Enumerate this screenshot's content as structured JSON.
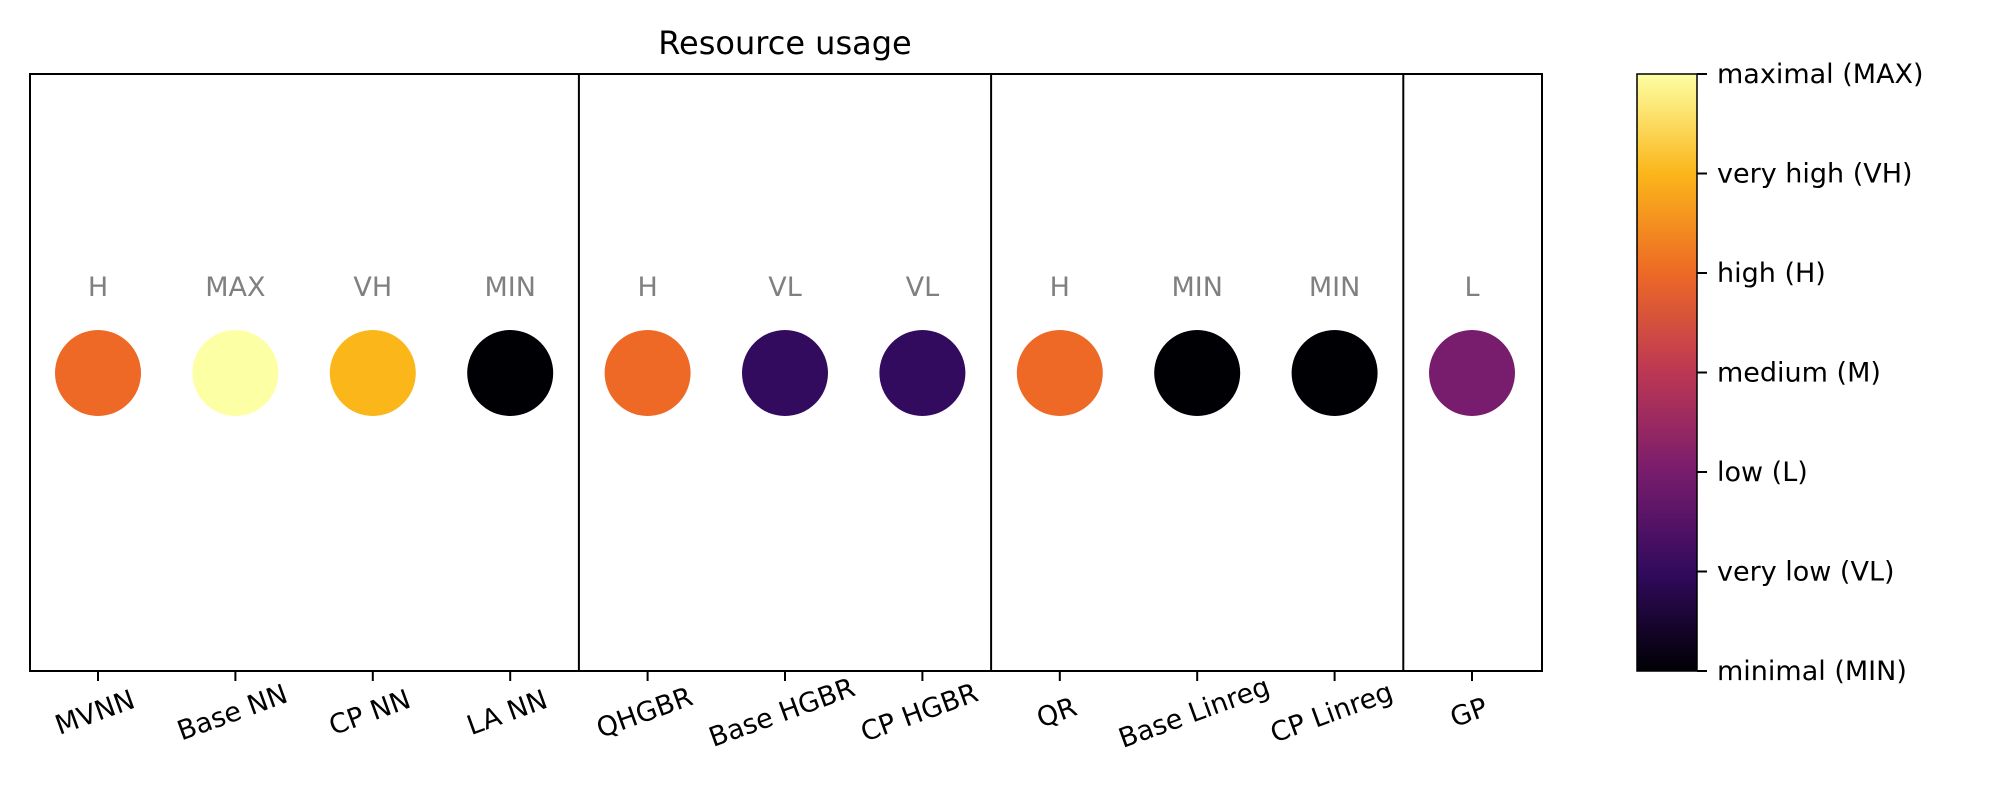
{
  "chart_data": {
    "type": "scatter",
    "title": "Resource usage",
    "xlabel": "",
    "ylabel": "",
    "categories": [
      "MVNN",
      "Base NN",
      "CP NN",
      "LA NN",
      "QHGBR",
      "Base HGBR",
      "CP HGBR",
      "QR",
      "Base Linreg",
      "CP Linreg",
      "GP"
    ],
    "values": [
      4,
      6,
      5,
      0,
      4,
      1,
      1,
      4,
      0,
      0,
      2
    ],
    "point_labels": [
      "H",
      "MAX",
      "VH",
      "MIN",
      "H",
      "VL",
      "VL",
      "H",
      "MIN",
      "MIN",
      "L"
    ],
    "group_separators_after": [
      3,
      6,
      9
    ],
    "grid": false,
    "colormap": "inferno",
    "colorbar": {
      "ticks": [
        0,
        1,
        2,
        3,
        4,
        5,
        6
      ],
      "tick_labels": [
        "minimal (MIN)",
        "very low (VL)",
        "low (L)",
        "medium (M)",
        "high (H)",
        "very high (VH)",
        "maximal (MAX)"
      ],
      "placement": "right"
    }
  },
  "colors": {
    "inferno_stops": [
      "#000004",
      "#320A5E",
      "#781C6D",
      "#BC3754",
      "#ED6925",
      "#FBB61A",
      "#FCFFA4"
    ],
    "point_label": "#808080",
    "axis": "#000000"
  }
}
